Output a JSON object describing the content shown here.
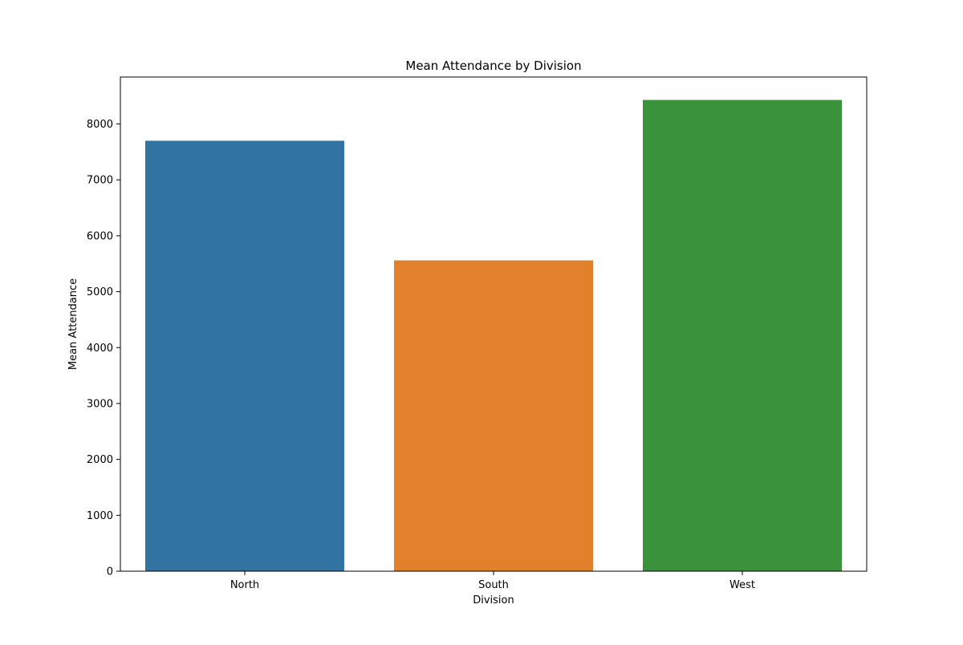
{
  "chart_data": {
    "type": "bar",
    "title": "Mean Attendance by Division",
    "xlabel": "Division",
    "ylabel": "Mean Attendance",
    "categories": [
      "North",
      "South",
      "West"
    ],
    "values": [
      7700,
      5560,
      8430
    ],
    "ylim": [
      0,
      8840
    ],
    "yticks": [
      0,
      1000,
      2000,
      3000,
      4000,
      5000,
      6000,
      7000,
      8000
    ],
    "grid": false,
    "legend": "none",
    "colors": [
      "#3274a1",
      "#e1812c",
      "#3a923a"
    ]
  }
}
